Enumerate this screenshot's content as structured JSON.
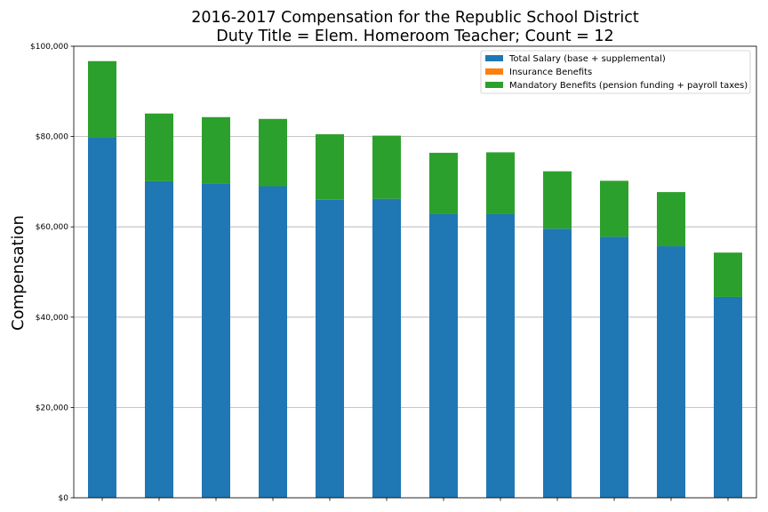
{
  "chart_data": {
    "type": "bar",
    "stacked": true,
    "title": "2016-2017 Compensation for the Republic School District",
    "subtitle": "Duty Title = Elem. Homeroom Teacher; Count = 12",
    "xlabel": "",
    "ylabel": "Compensation",
    "ylim": [
      0,
      100000
    ],
    "yticks": [
      0,
      20000,
      40000,
      60000,
      80000,
      100000
    ],
    "ytick_labels": [
      "$0",
      "$20,000",
      "$40,000",
      "$60,000",
      "$80,000",
      "$100,000"
    ],
    "grid": "horizontal",
    "legend_position": "top-right",
    "categories": [
      "",
      "",
      "",
      "",
      "",
      "",
      "",
      "",
      "",
      "",
      "",
      ""
    ],
    "series": [
      {
        "name": "Total Salary (base + supplemental)",
        "color": "#1f77b4",
        "values": [
          79900,
          70100,
          69500,
          69000,
          66000,
          66200,
          62800,
          62800,
          59600,
          57800,
          55700,
          44500
        ]
      },
      {
        "name": "Insurance Benefits",
        "color": "#ff7f0e",
        "values": [
          0,
          0,
          0,
          0,
          0,
          0,
          0,
          0,
          0,
          0,
          0,
          0
        ]
      },
      {
        "name": "Mandatory Benefits (pension funding + payroll taxes)",
        "color": "#2ca02c",
        "values": [
          16800,
          15000,
          14800,
          14900,
          14500,
          14000,
          13600,
          13700,
          12700,
          12400,
          12000,
          9800
        ]
      }
    ]
  }
}
